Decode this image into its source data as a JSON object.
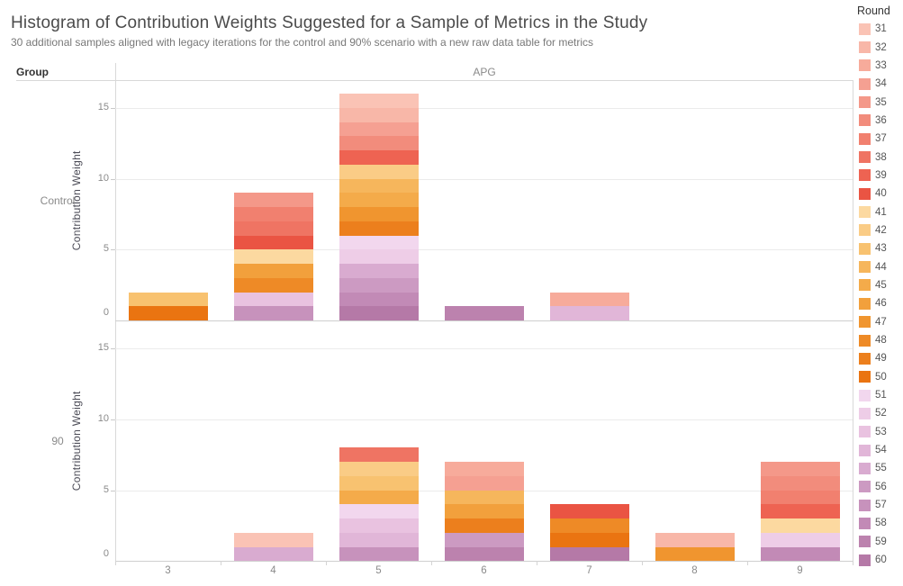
{
  "title": "Histogram of Contribution Weights Suggested for a Sample of Metrics in the Study",
  "subtitle": "30 additional samples aligned with legacy iterations for the control and 90% scenario with a new raw data table for metrics",
  "header": {
    "group_label": "Group",
    "column_label": "APG"
  },
  "legend": {
    "title": "Round",
    "items": [
      {
        "round": 31,
        "color": "#fac3b5"
      },
      {
        "round": 32,
        "color": "#f8b7a8"
      },
      {
        "round": 33,
        "color": "#f7ab9b"
      },
      {
        "round": 34,
        "color": "#f5a092"
      },
      {
        "round": 35,
        "color": "#f49889"
      },
      {
        "round": 36,
        "color": "#f28c7c"
      },
      {
        "round": 37,
        "color": "#f1806f"
      },
      {
        "round": 38,
        "color": "#ef7463"
      },
      {
        "round": 39,
        "color": "#ee6352"
      },
      {
        "round": 40,
        "color": "#ea5443"
      },
      {
        "round": 41,
        "color": "#fcd9a0"
      },
      {
        "round": 42,
        "color": "#facc86"
      },
      {
        "round": 43,
        "color": "#f8c270"
      },
      {
        "round": 44,
        "color": "#f6b65c"
      },
      {
        "round": 45,
        "color": "#f4ab4a"
      },
      {
        "round": 46,
        "color": "#f2a03c"
      },
      {
        "round": 47,
        "color": "#f0952f"
      },
      {
        "round": 48,
        "color": "#ee8a26"
      },
      {
        "round": 49,
        "color": "#ec7f1d"
      },
      {
        "round": 50,
        "color": "#ea7411"
      },
      {
        "round": 51,
        "color": "#f2d7ee"
      },
      {
        "round": 52,
        "color": "#eecde7"
      },
      {
        "round": 53,
        "color": "#e9c2e0"
      },
      {
        "round": 54,
        "color": "#e1b6d8"
      },
      {
        "round": 55,
        "color": "#d9abd0"
      },
      {
        "round": 56,
        "color": "#cc9ac2"
      },
      {
        "round": 57,
        "color": "#c792bc"
      },
      {
        "round": 58,
        "color": "#c28ab6"
      },
      {
        "round": 59,
        "color": "#bc82ae"
      },
      {
        "round": 60,
        "color": "#b579a7"
      }
    ]
  },
  "chart_data": {
    "type": "bar",
    "stacked": true,
    "orientation": "vertical",
    "color_by": "Round",
    "stack_order": "bottom_to_top_descending_round",
    "segment_value": 1,
    "x_categories": [
      "3",
      "4",
      "5",
      "6",
      "7",
      "8",
      "9"
    ],
    "y_axis": {
      "title": "Contribution Weight",
      "ticks": [
        0,
        5,
        10,
        15
      ],
      "max": 16.95,
      "grid": true
    },
    "rows": [
      {
        "group": "Control",
        "totals": [
          2,
          9,
          16,
          1,
          2,
          0,
          0
        ],
        "stacks": [
          [
            50,
            43
          ],
          [
            57,
            53,
            48,
            46,
            41,
            40,
            38,
            37,
            35
          ],
          [
            60,
            58,
            56,
            55,
            52,
            51,
            49,
            47,
            45,
            44,
            42,
            39,
            36,
            34,
            32,
            31
          ],
          [
            59
          ],
          [
            54,
            33
          ],
          [],
          []
        ]
      },
      {
        "group": "90",
        "totals": [
          0,
          2,
          8,
          7,
          4,
          2,
          7
        ],
        "stacks": [
          [],
          [
            55,
            31
          ],
          [
            57,
            54,
            53,
            51,
            45,
            43,
            42,
            38
          ],
          [
            59,
            56,
            49,
            46,
            44,
            34,
            33
          ],
          [
            60,
            50,
            48,
            40
          ],
          [
            47,
            32
          ],
          [
            58,
            52,
            41,
            39,
            37,
            36,
            35
          ]
        ]
      }
    ]
  }
}
